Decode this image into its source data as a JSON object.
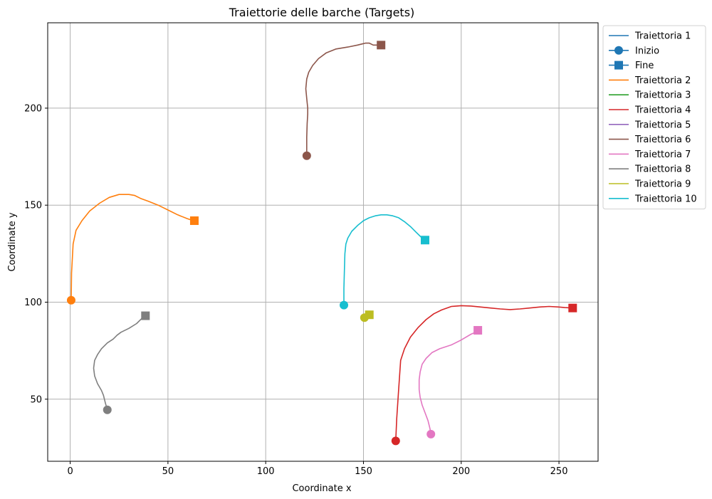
{
  "chart_data": {
    "type": "line",
    "title": "Traiettorie delle barche (Targets)",
    "xlabel": "Coordinate x",
    "ylabel": "Coordinate y",
    "xlim": [
      -11.5,
      270
    ],
    "ylim": [
      18,
      244
    ],
    "xticks": [
      0,
      50,
      100,
      150,
      200,
      250
    ],
    "yticks": [
      50,
      100,
      150,
      200
    ],
    "grid": true,
    "legend_position": "outside-right-top",
    "legend": [
      {
        "label": "Traiettoria 1",
        "kind": "line",
        "color": "#1f77b4"
      },
      {
        "label": "Inizio",
        "kind": "circle",
        "color": "#1f77b4"
      },
      {
        "label": "Fine",
        "kind": "square",
        "color": "#1f77b4"
      },
      {
        "label": "Traiettoria 2",
        "kind": "line",
        "color": "#ff7f0e"
      },
      {
        "label": "Traiettoria 3",
        "kind": "line",
        "color": "#2ca02c"
      },
      {
        "label": "Traiettoria 4",
        "kind": "line",
        "color": "#d62728"
      },
      {
        "label": "Traiettoria 5",
        "kind": "line",
        "color": "#9467bd"
      },
      {
        "label": "Traiettoria 6",
        "kind": "line",
        "color": "#8c564b"
      },
      {
        "label": "Traiettoria 7",
        "kind": "line",
        "color": "#e377c2"
      },
      {
        "label": "Traiettoria 8",
        "kind": "line",
        "color": "#7f7f7f"
      },
      {
        "label": "Traiettoria 9",
        "kind": "line",
        "color": "#bcbd22"
      },
      {
        "label": "Traiettoria 10",
        "kind": "line",
        "color": "#17becf"
      }
    ],
    "series": [
      {
        "name": "Traiettoria 2",
        "color": "#ff7f0e",
        "points": [
          [
            0.5,
            101
          ],
          [
            0.7,
            115
          ],
          [
            1.5,
            130
          ],
          [
            3,
            137
          ],
          [
            6,
            142
          ],
          [
            10,
            147
          ],
          [
            15,
            151
          ],
          [
            20,
            154
          ],
          [
            25,
            155.5
          ],
          [
            30,
            155.5
          ],
          [
            33,
            155
          ],
          [
            36,
            153.5
          ],
          [
            40,
            152
          ],
          [
            45,
            150
          ],
          [
            50,
            147.5
          ],
          [
            55,
            145
          ],
          [
            60,
            143
          ],
          [
            63,
            142
          ]
        ]
      },
      {
        "name": "Traiettoria 6",
        "color": "#8c564b",
        "points": [
          [
            121,
            175
          ],
          [
            121,
            185
          ],
          [
            121.2,
            192
          ],
          [
            121.5,
            197
          ],
          [
            121.5,
            200
          ],
          [
            121,
            205
          ],
          [
            120.5,
            210
          ],
          [
            121,
            215
          ],
          [
            122,
            218.5
          ],
          [
            124,
            222
          ],
          [
            127,
            225.5
          ],
          [
            131,
            228.5
          ],
          [
            136,
            230.5
          ],
          [
            142,
            231.5
          ],
          [
            147,
            232.5
          ],
          [
            151,
            233.5
          ],
          [
            153,
            233.5
          ],
          [
            155,
            232.5
          ],
          [
            159,
            232.5
          ]
        ]
      },
      {
        "name": "Traiettoria 10",
        "color": "#17becf",
        "points": [
          [
            140,
            98.5
          ],
          [
            140,
            107
          ],
          [
            140.2,
            115
          ],
          [
            140.5,
            125
          ],
          [
            141,
            130
          ],
          [
            142,
            133
          ],
          [
            144,
            136.5
          ],
          [
            147,
            139.5
          ],
          [
            150,
            142
          ],
          [
            153,
            143.5
          ],
          [
            156,
            144.5
          ],
          [
            159,
            145
          ],
          [
            162,
            145
          ],
          [
            165,
            144.5
          ],
          [
            168,
            143.5
          ],
          [
            171,
            141.5
          ],
          [
            174,
            139
          ],
          [
            177,
            136
          ],
          [
            180,
            133
          ],
          [
            181,
            132
          ]
        ]
      },
      {
        "name": "Traiettoria 8",
        "color": "#7f7f7f",
        "points": [
          [
            19,
            44.5
          ],
          [
            18,
            48
          ],
          [
            17,
            52
          ],
          [
            16,
            54.5
          ],
          [
            14,
            58
          ],
          [
            12.5,
            62
          ],
          [
            12,
            66
          ],
          [
            12.5,
            70
          ],
          [
            14,
            73
          ],
          [
            16,
            76
          ],
          [
            19,
            79
          ],
          [
            22,
            81
          ],
          [
            24,
            83
          ],
          [
            26,
            84.5
          ],
          [
            30,
            86.5
          ],
          [
            34,
            89
          ],
          [
            36.5,
            91.5
          ],
          [
            38,
            93
          ]
        ]
      },
      {
        "name": "Traiettoria 9",
        "color": "#bcbd22",
        "points": [
          [
            150.5,
            92
          ],
          [
            151.5,
            92.5
          ],
          [
            153,
            93.5
          ]
        ]
      },
      {
        "name": "Traiettoria 4",
        "color": "#d62728",
        "points": [
          [
            166.5,
            28.5
          ],
          [
            167,
            40
          ],
          [
            168,
            55
          ],
          [
            169,
            70
          ],
          [
            171,
            76
          ],
          [
            174,
            82
          ],
          [
            178,
            87
          ],
          [
            182,
            91
          ],
          [
            186,
            94
          ],
          [
            190,
            96
          ],
          [
            195,
            97.8
          ],
          [
            200,
            98.2
          ],
          [
            205,
            98
          ],
          [
            210,
            97.5
          ],
          [
            215,
            97
          ],
          [
            220,
            96.5
          ],
          [
            225,
            96.2
          ],
          [
            230,
            96.5
          ],
          [
            235,
            97
          ],
          [
            240,
            97.5
          ],
          [
            245,
            97.8
          ],
          [
            250,
            97.5
          ],
          [
            253,
            97.2
          ],
          [
            257,
            97
          ]
        ]
      },
      {
        "name": "Traiettoria 7",
        "color": "#e377c2",
        "points": [
          [
            184.5,
            32
          ],
          [
            184,
            35
          ],
          [
            183,
            39
          ],
          [
            181.5,
            43
          ],
          [
            180,
            47
          ],
          [
            179,
            51
          ],
          [
            178.5,
            55
          ],
          [
            178.5,
            60
          ],
          [
            179,
            64
          ],
          [
            180,
            68
          ],
          [
            182,
            71
          ],
          [
            185,
            74
          ],
          [
            189,
            76
          ],
          [
            195,
            78
          ],
          [
            200,
            80.5
          ],
          [
            205,
            83.5
          ],
          [
            208.5,
            85
          ]
        ]
      }
    ],
    "markers": [
      {
        "series": "Traiettoria 2",
        "start": [
          0.5,
          101
        ],
        "end": [
          63.5,
          142
        ]
      },
      {
        "series": "Traiettoria 6",
        "start": [
          121,
          175.5
        ],
        "end": [
          159,
          232.5
        ]
      },
      {
        "series": "Traiettoria 10",
        "start": [
          140,
          98.5
        ],
        "end": [
          181.5,
          132
        ]
      },
      {
        "series": "Traiettoria 8",
        "start": [
          19,
          44.5
        ],
        "end": [
          38.5,
          93
        ]
      },
      {
        "series": "Traiettoria 9",
        "start": [
          150.5,
          92
        ],
        "end": [
          153,
          93.5
        ]
      },
      {
        "series": "Traiettoria 4",
        "start": [
          166.5,
          28.5
        ],
        "end": [
          257,
          97
        ]
      },
      {
        "series": "Traiettoria 7",
        "start": [
          184.5,
          32
        ],
        "end": [
          208.5,
          85.5
        ]
      }
    ]
  }
}
